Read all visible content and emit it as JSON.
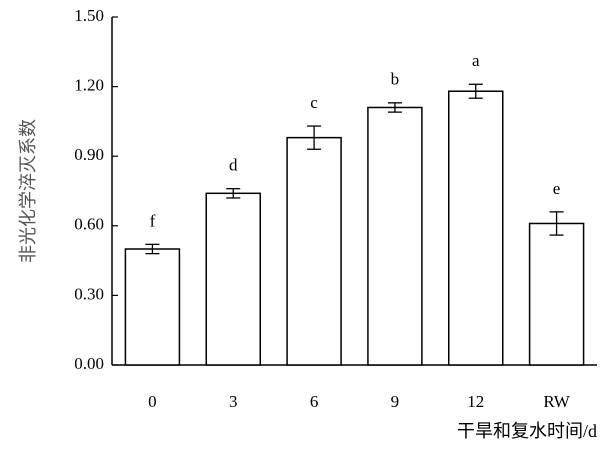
{
  "chart_data": {
    "type": "bar",
    "x_label": "干旱和复水时间/d",
    "y_label": "非光化学淬灭系数",
    "categories": [
      "0",
      "3",
      "6",
      "9",
      "12",
      "RW"
    ],
    "values": [
      0.5,
      0.74,
      0.98,
      1.11,
      1.18,
      0.61
    ],
    "errors": [
      0.02,
      0.02,
      0.05,
      0.02,
      0.03,
      0.05
    ],
    "letters": [
      "f",
      "d",
      "c",
      "b",
      "a",
      "e"
    ],
    "color": "#ffffff",
    "ylim": [
      0,
      1.5
    ],
    "yticks": [
      {
        "value": 0,
        "label": "0.00"
      },
      {
        "value": 0.3,
        "label": "0.30"
      },
      {
        "value": 0.6,
        "label": "0.60"
      },
      {
        "value": 0.9,
        "label": "0.90"
      },
      {
        "value": 1.2,
        "label": "1.20"
      },
      {
        "value": 1.5,
        "label": "1.50"
      }
    ]
  }
}
